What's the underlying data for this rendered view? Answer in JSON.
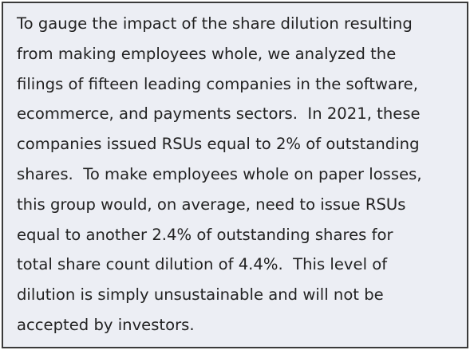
{
  "lines": [
    "To gauge the impact of the share dilution resulting",
    "from making employees whole, we analyzed the",
    "filings of fifteen leading companies in the software,",
    "ecommerce, and payments sectors.  In 2021, these",
    "companies issued RSUs equal to 2% of outstanding",
    "shares.  To make employees whole on paper losses,",
    "this group would, on average, need to issue RSUs",
    "equal to another 2.4% of outstanding shares for",
    "total share count dilution of 4.4%.  This level of",
    "dilution is simply unsustainable and will not be",
    "accepted by investors."
  ]
}
